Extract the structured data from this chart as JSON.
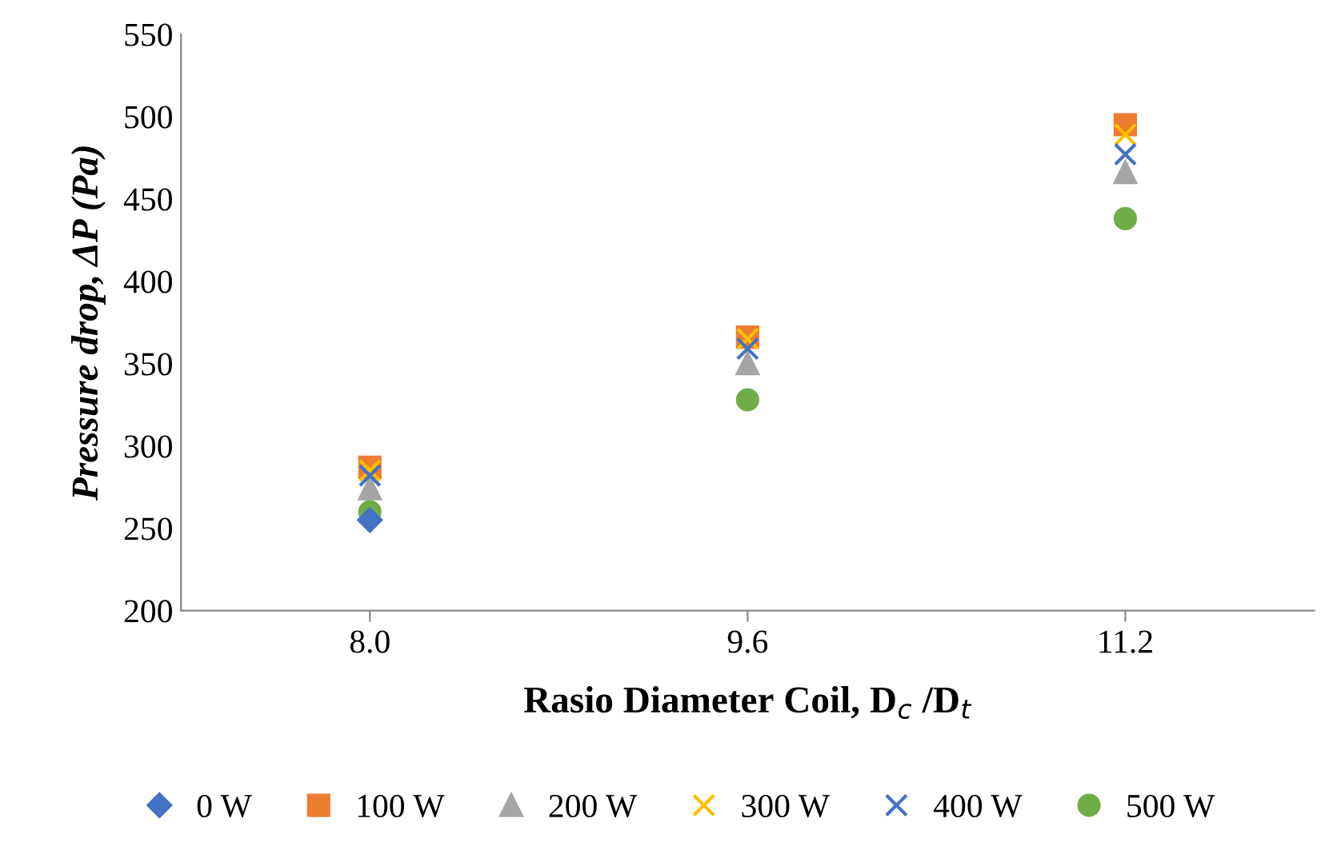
{
  "chart_data": {
    "type": "scatter",
    "xlabel": "Rasio Diameter Coil, D$_{c}$ /D$_{t}$",
    "ylabel": "Pressure drop, ΔP (Pa)",
    "categories": [
      "8.0",
      "9.6",
      "11.2"
    ],
    "series": [
      {
        "name": "0 W",
        "color": "#4472c4",
        "marker": "diamond",
        "values": [
          255,
          null,
          null
        ]
      },
      {
        "name": "100 W",
        "color": "#ed7d31",
        "marker": "square",
        "values": [
          287,
          366,
          495
        ]
      },
      {
        "name": "200 W",
        "color": "#a5a5a5",
        "marker": "triangle",
        "values": [
          274,
          350,
          466
        ]
      },
      {
        "name": "300 W",
        "color": "#ffc000",
        "marker": "cross",
        "values": [
          285,
          365,
          489
        ]
      },
      {
        "name": "400 W",
        "color": "#4472c4",
        "marker": "cross",
        "values": [
          282,
          359,
          477
        ]
      },
      {
        "name": "500 W",
        "color": "#70ad47",
        "marker": "circle",
        "values": [
          260,
          328,
          438
        ]
      }
    ],
    "ylim": [
      200,
      550
    ],
    "yticks": [
      200,
      250,
      300,
      350,
      400,
      450,
      500,
      550
    ],
    "grid": false,
    "legend": "bottom"
  }
}
